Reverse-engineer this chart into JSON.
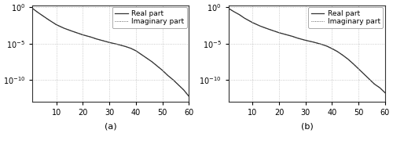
{
  "n_eigenvalues": 60,
  "ylim_log": [
    -13.0,
    0.3
  ],
  "yticks": [
    0,
    -5,
    -10
  ],
  "xticks": [
    10,
    20,
    30,
    40,
    50,
    60
  ],
  "xlabel_a": "(a)",
  "xlabel_b": "(b)",
  "legend_entries": [
    "Real part",
    "Imaginary part"
  ],
  "line_color": "#333333",
  "grid_color": "#bbbbbb",
  "background_color": "#ffffff",
  "fig_width": 5.0,
  "fig_height": 1.84,
  "dpi": 100,
  "curve_a_key_x": [
    1,
    3,
    5,
    7,
    10,
    13,
    16,
    20,
    23,
    25,
    27,
    30,
    33,
    36,
    38,
    40,
    42,
    44,
    46,
    48,
    50,
    52,
    54,
    56,
    58,
    60
  ],
  "curve_a_key_y": [
    -0.15,
    -0.7,
    -1.2,
    -1.7,
    -2.4,
    -2.9,
    -3.3,
    -3.8,
    -4.1,
    -4.35,
    -4.55,
    -4.85,
    -5.1,
    -5.4,
    -5.65,
    -6.0,
    -6.5,
    -7.0,
    -7.5,
    -8.1,
    -8.7,
    -9.4,
    -10.0,
    -10.7,
    -11.4,
    -12.3
  ],
  "curve_b_key_x": [
    1,
    3,
    5,
    7,
    10,
    13,
    16,
    20,
    23,
    25,
    27,
    30,
    33,
    36,
    38,
    40,
    42,
    44,
    46,
    48,
    50,
    52,
    54,
    56,
    58,
    60
  ],
  "curve_b_key_y": [
    -0.15,
    -0.6,
    -1.0,
    -1.5,
    -2.1,
    -2.6,
    -3.0,
    -3.5,
    -3.8,
    -4.0,
    -4.25,
    -4.55,
    -4.8,
    -5.1,
    -5.35,
    -5.7,
    -6.1,
    -6.6,
    -7.15,
    -7.8,
    -8.5,
    -9.2,
    -9.9,
    -10.6,
    -11.1,
    -11.8
  ]
}
